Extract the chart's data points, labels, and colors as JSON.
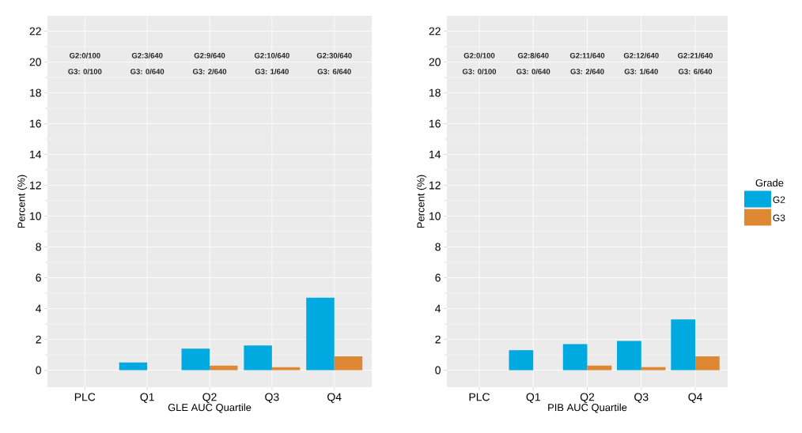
{
  "chart_data": [
    {
      "type": "bar",
      "xlabel": "GLE AUC Quartile",
      "ylabel": "Percent (%)",
      "categories": [
        "PLC",
        "Q1",
        "Q2",
        "Q3",
        "Q4"
      ],
      "series": [
        {
          "color": "#00a9e0",
          "values": [
            0,
            0.5,
            1.4,
            1.6,
            4.7
          ]
        },
        {
          "color": "#de8834",
          "values": [
            0,
            0,
            0.3,
            0.2,
            0.9
          ]
        }
      ],
      "ylim": [
        -1.1,
        23
      ],
      "yticks": [
        0,
        2,
        4,
        6,
        8,
        10,
        12,
        14,
        16,
        18,
        20,
        22
      ],
      "grid": true,
      "legend": false,
      "annotations": [
        "G2:0/100",
        "G2:3/640",
        "G2:9/640",
        "G2:10/640",
        "G2:30/640",
        "G3: 0/100",
        "G3: 0/640",
        "G3: 2/640",
        "G3: 1/640",
        "G3: 6/640"
      ]
    },
    {
      "type": "bar",
      "xlabel": "PIB AUC Quartile",
      "ylabel": "Percent (%)",
      "legend_title": "Grade",
      "categories": [
        "PLC",
        "Q1",
        "Q2",
        "Q3",
        "Q4"
      ],
      "series": [
        {
          "name": "G2",
          "color": "#00a9e0",
          "values": [
            0,
            1.3,
            1.7,
            1.9,
            3.3
          ]
        },
        {
          "name": "G3",
          "color": "#de8834",
          "values": [
            0,
            0,
            0.3,
            0.2,
            0.9
          ]
        }
      ],
      "ylim": [
        -1.1,
        23
      ],
      "yticks": [
        0,
        2,
        4,
        6,
        8,
        10,
        12,
        14,
        16,
        18,
        20,
        22
      ],
      "grid": true,
      "legend": "right",
      "annotations": [
        "G2:0/100",
        "G2:8/640",
        "G2:11/640",
        "G2:12/640",
        "G2:21/640",
        "G3: 0/100",
        "G3: 0/640",
        "G3: 2/640",
        "G3: 1/640",
        "G3: 6/640"
      ]
    }
  ]
}
